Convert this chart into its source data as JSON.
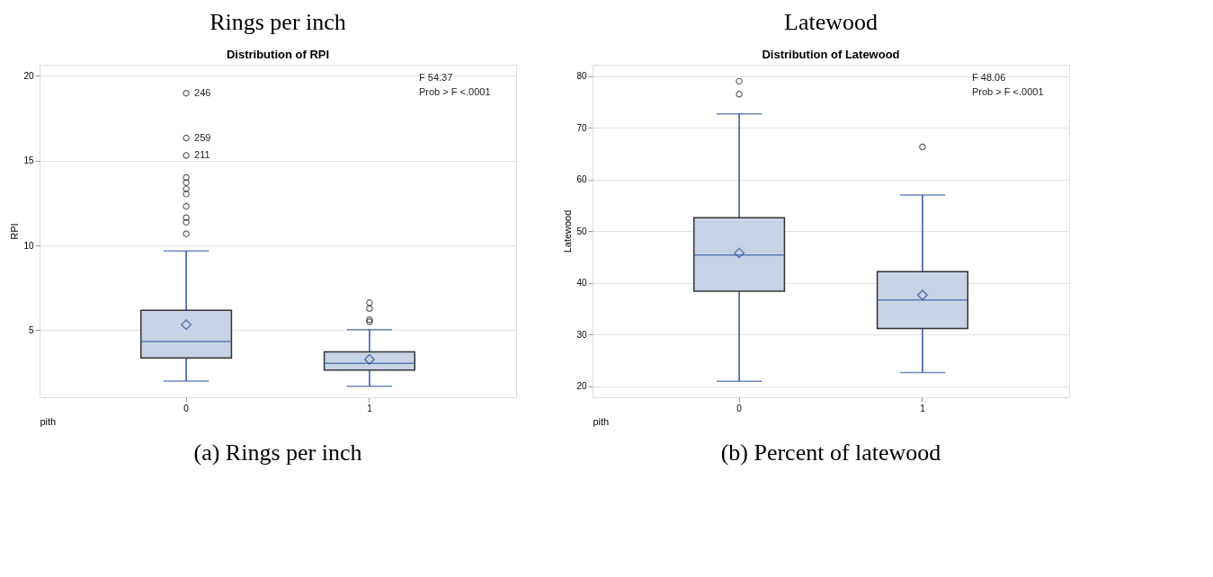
{
  "chart_data": [
    {
      "type": "box",
      "title": "Distribution of RPI",
      "xlabel": "pith",
      "ylabel": "RPI",
      "categories": [
        "0",
        "1"
      ],
      "color": "#c8d3e5",
      "boxes": [
        {
          "low": 2.0,
          "q1": 3.37,
          "median": 4.33,
          "q3": 6.17,
          "high": 9.67,
          "mean": 5.33,
          "outliers": [
            18.97,
            16.33,
            15.3,
            14.0,
            13.7,
            13.33,
            13.03,
            12.3,
            11.63,
            11.37,
            10.68
          ]
        },
        {
          "low": 1.7,
          "q1": 2.65,
          "median": 3.05,
          "q3": 3.72,
          "high": 5.03,
          "mean": 3.28,
          "outliers": [
            6.62,
            6.28,
            5.62,
            5.5
          ]
        }
      ],
      "ylim": [
        1.05,
        20.65
      ],
      "yticks": [
        5,
        10,
        15,
        20
      ],
      "grid": "y",
      "marker": "circle",
      "annotations": [
        "Rings per inch",
        "246",
        "259",
        "211",
        "F 54.37",
        "Prob > F <.0001",
        "(a) Rings per inch"
      ]
    },
    {
      "type": "box",
      "title": "Distribution of Latewood",
      "xlabel": "pith",
      "ylabel": "Latewood",
      "categories": [
        "0",
        "1"
      ],
      "color": "#c8d3e5",
      "boxes": [
        {
          "low": 21.0,
          "q1": 38.4,
          "median": 45.4,
          "q3": 52.6,
          "high": 72.67,
          "mean": 45.8,
          "outliers": [
            79.0,
            76.5
          ]
        },
        {
          "low": 22.7,
          "q1": 31.2,
          "median": 36.7,
          "q3": 42.2,
          "high": 57.0,
          "mean": 37.65,
          "outliers": [
            66.3
          ]
        }
      ],
      "ylim": [
        17.9,
        82.2
      ],
      "yticks": [
        20,
        30,
        40,
        50,
        60,
        70,
        80
      ],
      "grid": "y",
      "marker": "circle",
      "annotations": [
        "Latewood",
        "F 48.06",
        "Prob > F <.0001",
        "(b) Percent of latewood"
      ]
    }
  ]
}
